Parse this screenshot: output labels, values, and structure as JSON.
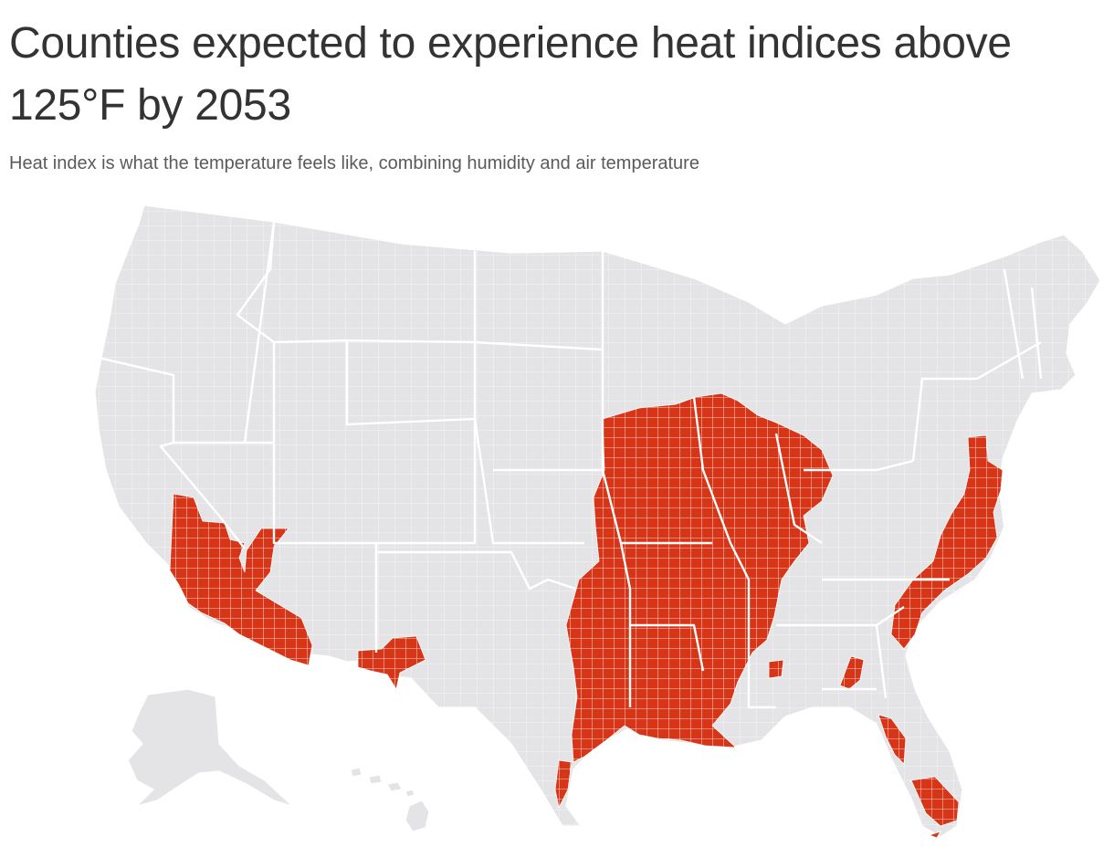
{
  "title": "Counties expected to experience heat indices above 125°F by 2053",
  "subtitle": "Heat index is what the temperature feels like, combining humidity and air temperature",
  "colors": {
    "highlight": "#d63518",
    "land": "#e4e4e6",
    "border": "#ffffff",
    "text": "#333333"
  },
  "map": {
    "type": "choropleth",
    "geography": "U.S. counties",
    "highlighted_regions": [
      "Southern California / Southwest Arizona",
      "Southern New Mexico",
      "Mississippi Valley and Midwest",
      "Gulf Coast of Texas and Louisiana",
      "Mid-Atlantic coast",
      "Carolina coast",
      "Florida"
    ]
  }
}
